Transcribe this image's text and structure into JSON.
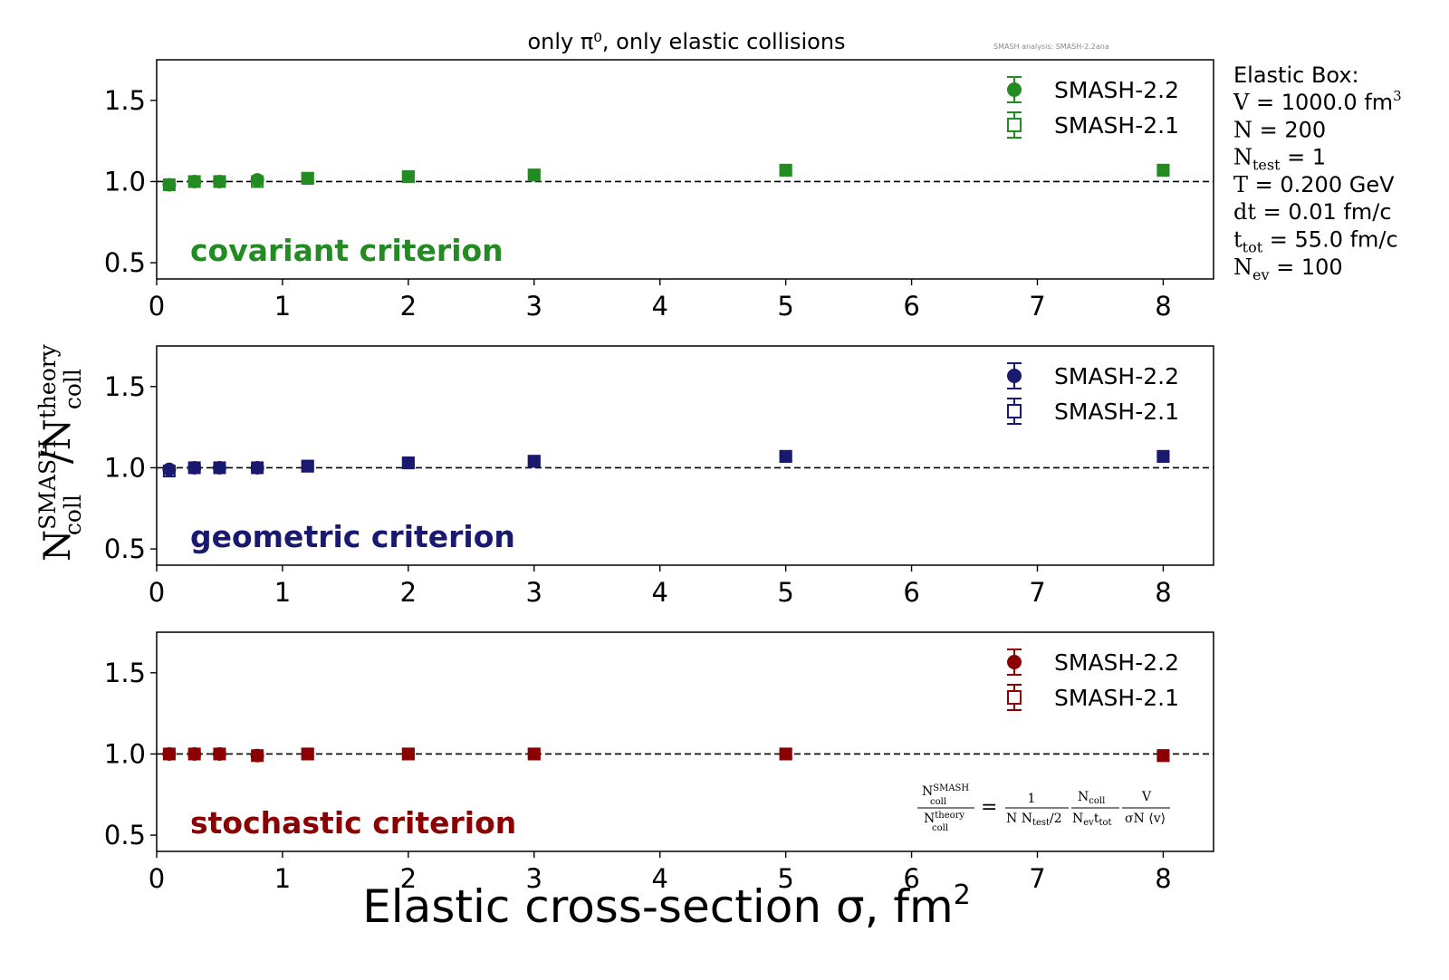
{
  "title": "only π⁰, only elastic collisions",
  "watermark": "SMASH analysis: SMASH-2.2ana",
  "xlabel_main": "Elastic cross-section σ, fm",
  "xlabel_sup": "2",
  "ylabel": {
    "top_base": "N",
    "top_sup": "SMASH",
    "top_sub": "coll",
    "slash": "/",
    "bot_base": "N",
    "bot_sup": "theory",
    "bot_sub": "coll"
  },
  "params": {
    "heading": "Elastic Box:",
    "lines": [
      {
        "base": "V",
        "sub": "",
        "rest": " = 1000.0 fm",
        "sup": "3"
      },
      {
        "base": "N",
        "sub": "",
        "rest": " = 200",
        "sup": ""
      },
      {
        "base": "N",
        "sub": "test",
        "rest": " = 1",
        "sup": ""
      },
      {
        "base": "T",
        "sub": "",
        "rest": " = 0.200 GeV",
        "sup": ""
      },
      {
        "base": "dt",
        "sub": "",
        "rest": " = 0.01 fm/c",
        "sup": ""
      },
      {
        "base": "t",
        "sub": "tot",
        "rest": " = 55.0 fm/c",
        "sup": ""
      },
      {
        "base": "N",
        "sub": "ev",
        "rest": " = 100",
        "sup": ""
      }
    ]
  },
  "formula": {
    "lhs_num_base": "N",
    "lhs_num_sup": "SMASH",
    "lhs_num_sub": "coll",
    "lhs_den_base": "N",
    "lhs_den_sup": "theory",
    "lhs_den_sub": "coll",
    "eq": "=",
    "f1_num": "1",
    "f1_den_a": "N N",
    "f1_den_sub": "test",
    "f1_den_b": "/2",
    "f2_num_base": "N",
    "f2_num_sub": "coll",
    "f2_den_a": "N",
    "f2_den_a_sub": "ev",
    "f2_den_b": "t",
    "f2_den_b_sub": "tot",
    "f3_num": "V",
    "f3_den": "σN ⟨v⟩"
  },
  "chart_data": [
    {
      "type": "scatter",
      "panel_label": "covariant criterion",
      "color": "#228b22",
      "xlim": [
        0,
        8.4
      ],
      "ylim": [
        0.4,
        1.75
      ],
      "xticks": [
        "0",
        "1",
        "2",
        "3",
        "4",
        "5",
        "6",
        "7",
        "8"
      ],
      "yticks": [
        "0.5",
        "1.0",
        "1.5"
      ],
      "reference_line": 1.0,
      "legend_position": "top-right",
      "series": [
        {
          "name": "SMASH-2.2",
          "marker": "filled-circle",
          "x": [
            0.1,
            0.3,
            0.5,
            0.8,
            1.2,
            2,
            3,
            5,
            8
          ],
          "y": [
            0.98,
            1.0,
            1.0,
            1.01,
            1.02,
            1.03,
            1.04,
            1.07,
            1.07
          ]
        },
        {
          "name": "SMASH-2.1",
          "marker": "open-square",
          "x": [
            0.1,
            0.3,
            0.5,
            0.8,
            1.2,
            2,
            3,
            5,
            8
          ],
          "y": [
            0.98,
            1.0,
            1.0,
            1.0,
            1.02,
            1.03,
            1.04,
            1.07,
            1.07
          ]
        }
      ]
    },
    {
      "type": "scatter",
      "panel_label": "geometric criterion",
      "color": "#191970",
      "xlim": [
        0,
        8.4
      ],
      "ylim": [
        0.4,
        1.75
      ],
      "xticks": [
        "0",
        "1",
        "2",
        "3",
        "4",
        "5",
        "6",
        "7",
        "8"
      ],
      "yticks": [
        "0.5",
        "1.0",
        "1.5"
      ],
      "reference_line": 1.0,
      "legend_position": "top-right",
      "series": [
        {
          "name": "SMASH-2.2",
          "marker": "filled-circle",
          "x": [
            0.1,
            0.3,
            0.5,
            0.8,
            1.2,
            2,
            3,
            5,
            8
          ],
          "y": [
            0.99,
            1.0,
            1.0,
            1.0,
            1.01,
            1.03,
            1.04,
            1.07,
            1.07
          ]
        },
        {
          "name": "SMASH-2.1",
          "marker": "open-square",
          "x": [
            0.1,
            0.3,
            0.5,
            0.8,
            1.2,
            2,
            3,
            5,
            8
          ],
          "y": [
            0.98,
            1.0,
            1.0,
            1.0,
            1.01,
            1.03,
            1.04,
            1.07,
            1.07
          ]
        }
      ]
    },
    {
      "type": "scatter",
      "panel_label": "stochastic criterion",
      "color": "#8b0000",
      "xlim": [
        0,
        8.4
      ],
      "ylim": [
        0.4,
        1.75
      ],
      "xticks": [
        "0",
        "1",
        "2",
        "3",
        "4",
        "5",
        "6",
        "7",
        "8"
      ],
      "yticks": [
        "0.5",
        "1.0",
        "1.5"
      ],
      "reference_line": 1.0,
      "legend_position": "top-right",
      "series": [
        {
          "name": "SMASH-2.2",
          "marker": "filled-circle",
          "x": [
            0.1,
            0.3,
            0.5,
            0.8,
            1.2,
            2,
            3,
            5,
            8
          ],
          "y": [
            1.0,
            1.0,
            1.0,
            0.99,
            1.0,
            1.0,
            1.0,
            1.0,
            0.99
          ]
        },
        {
          "name": "SMASH-2.1",
          "marker": "open-square",
          "x": [
            0.1,
            0.3,
            0.5,
            0.8,
            1.2,
            2,
            3,
            5,
            8
          ],
          "y": [
            1.0,
            1.0,
            1.0,
            0.99,
            1.0,
            1.0,
            1.0,
            1.0,
            0.99
          ]
        }
      ]
    }
  ]
}
